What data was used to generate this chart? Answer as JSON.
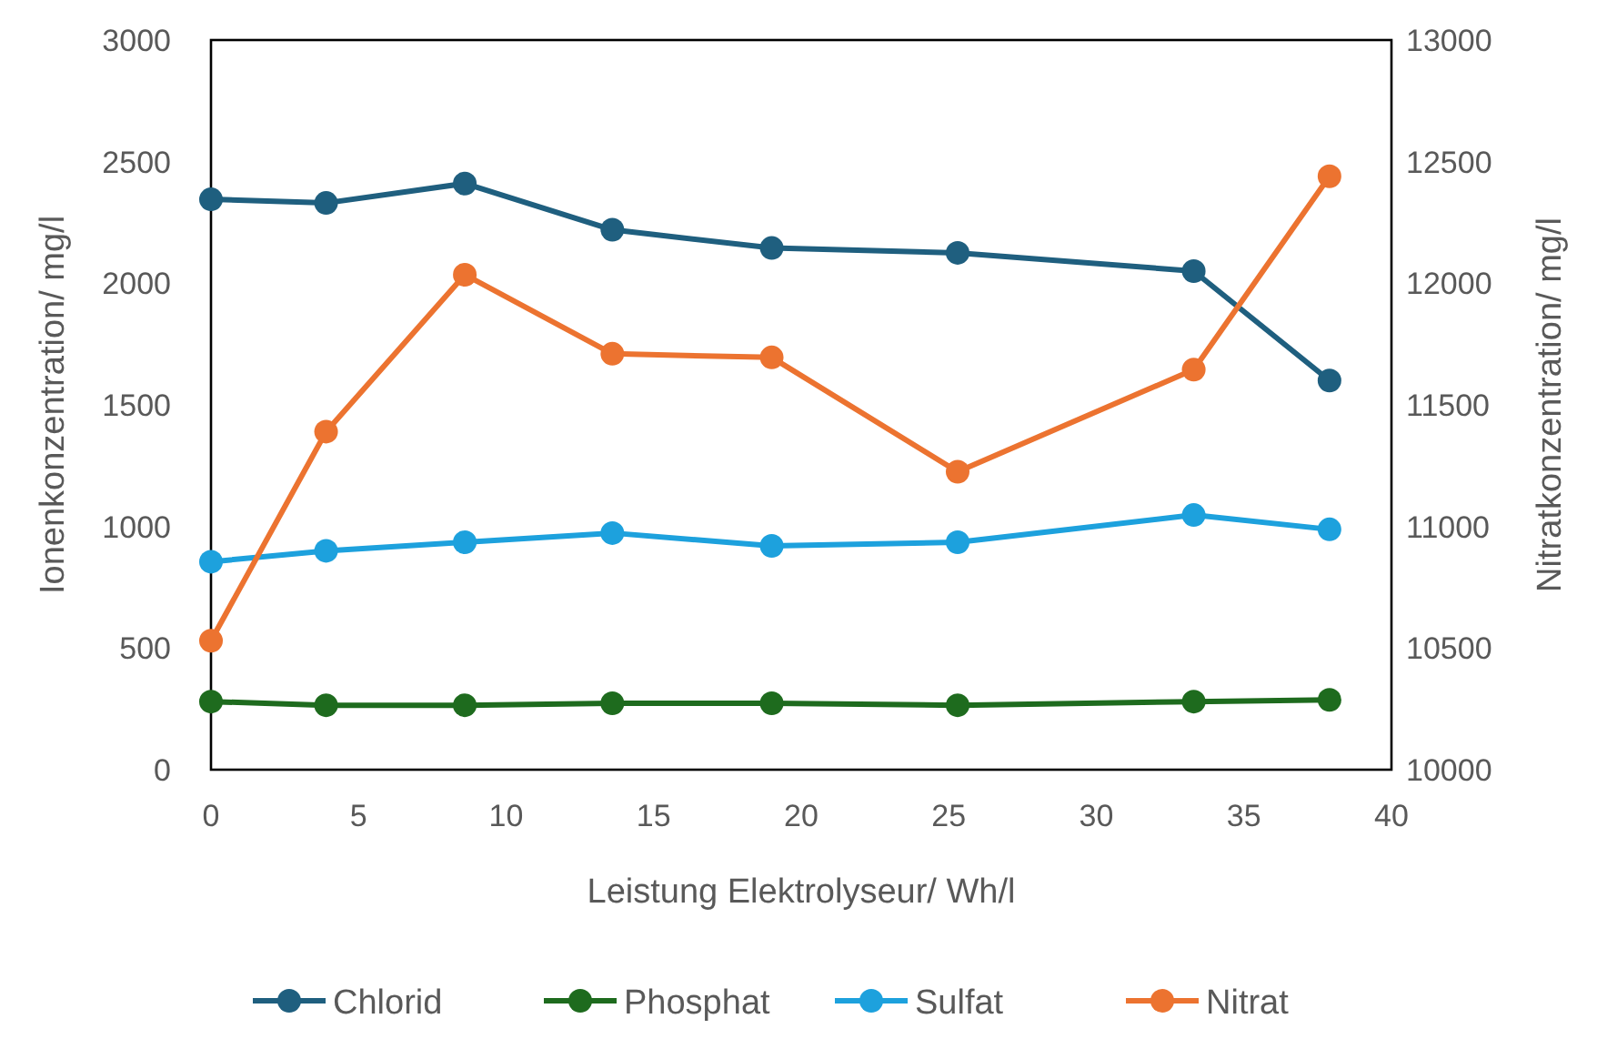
{
  "chart_data": {
    "type": "line",
    "xlabel": "Leistung Elektrolyseur/ Wh/l",
    "ylabel": "Ionenkonzentration/ mg/l",
    "y2label": "Nitratkonzentration/ mg/l",
    "x": [
      0,
      3.9,
      8.6,
      13.6,
      19,
      25.3,
      33.3,
      37.9
    ],
    "xlim": [
      0,
      40
    ],
    "xticks": [
      0,
      5,
      10,
      15,
      20,
      25,
      30,
      35,
      40
    ],
    "ylim": [
      0,
      3000
    ],
    "yticks": [
      0,
      500,
      1000,
      1500,
      2000,
      2500,
      3000
    ],
    "y2lim": [
      10000,
      13000
    ],
    "y2ticks": [
      10000,
      10500,
      11000,
      11500,
      12000,
      12500,
      13000
    ],
    "marker": "circle",
    "legend": "bottom",
    "grid": false,
    "series": [
      {
        "name": "Chlorid",
        "color": "#1f5f7f",
        "values": [
          2345,
          2330,
          2410,
          2220,
          2145,
          2125,
          2050,
          1600
        ]
      },
      {
        "name": "Phosphat",
        "color": "#1e6b1e",
        "values": [
          280,
          265,
          265,
          273,
          273,
          265,
          280,
          287
        ]
      },
      {
        "name": "Sulfat",
        "color": "#1da1dd",
        "values": [
          855,
          900,
          935,
          973,
          920,
          935,
          1047,
          988
        ]
      },
      {
        "name": "Nitrat",
        "color": "#ec7330",
        "axis": "y2",
        "values": [
          10530,
          11390,
          12035,
          11710,
          11695,
          11225,
          11645,
          12440
        ]
      }
    ]
  }
}
